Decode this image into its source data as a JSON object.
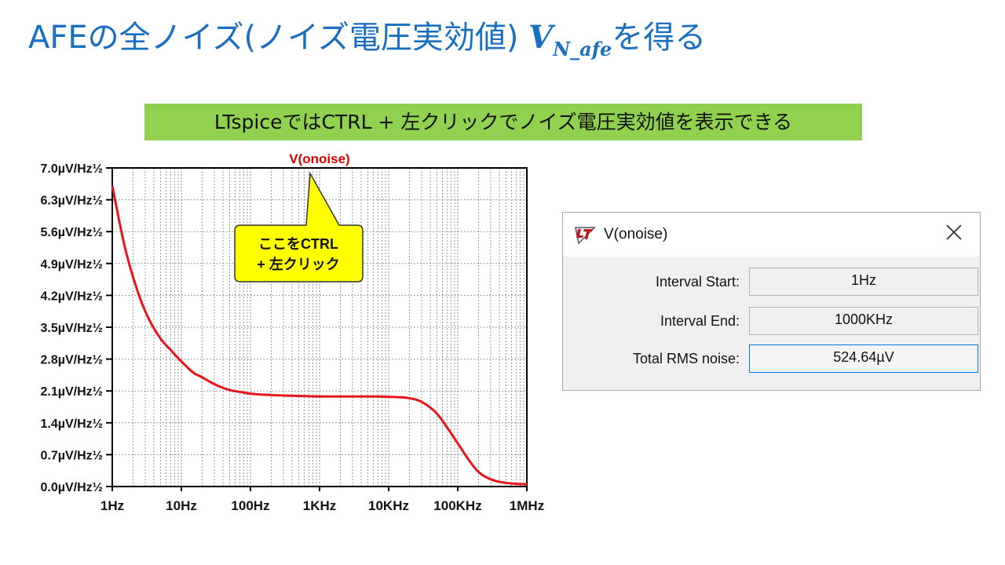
{
  "title": {
    "text": "AFEの全ノイズ(ノイズ電圧実効値) ",
    "symbol_main": "V",
    "symbol_sub": "N_afe",
    "suffix": "を得る"
  },
  "banner": {
    "text": "LTspiceではCTRL + 左クリックでノイズ電圧実効値を表示できる",
    "color": "#92d050"
  },
  "callout": {
    "line1": "ここをCTRL",
    "line2": "+ 左クリック",
    "color": "#ffff00"
  },
  "chart_data": {
    "type": "line",
    "title": "V(onoise)",
    "xscale": "log",
    "x_tick_labels": [
      "1Hz",
      "10Hz",
      "100Hz",
      "1KHz",
      "10KHz",
      "100KHz",
      "1MHz"
    ],
    "x_ticks": [
      1,
      10,
      100,
      1000,
      10000,
      100000,
      1000000
    ],
    "y_tick_labels": [
      "7.0µV/Hz½",
      "6.3µV/Hz½",
      "5.6µV/Hz½",
      "4.9µV/Hz½",
      "4.2µV/Hz½",
      "3.5µV/Hz½",
      "2.8µV/Hz½",
      "2.1µV/Hz½",
      "1.4µV/Hz½",
      "0.7µV/Hz½",
      "0.0µV/Hz½"
    ],
    "y_ticks": [
      7.0,
      6.3,
      5.6,
      4.9,
      4.2,
      3.5,
      2.8,
      2.1,
      1.4,
      0.7,
      0.0
    ],
    "xlim": [
      1,
      1000000
    ],
    "ylim": [
      0,
      7.0
    ],
    "grid": true,
    "series": [
      {
        "color": "#e8141c",
        "x": [
          1,
          1.5,
          2,
          3,
          5,
          7,
          10,
          15,
          20,
          30,
          50,
          70,
          100,
          200,
          500,
          1000,
          2000,
          5000,
          10000,
          20000,
          30000,
          50000,
          70000,
          100000,
          150000,
          200000,
          300000,
          500000,
          700000,
          1000000
        ],
        "y": [
          6.6,
          5.3,
          4.6,
          3.85,
          3.25,
          3.0,
          2.75,
          2.5,
          2.4,
          2.25,
          2.12,
          2.08,
          2.04,
          2.01,
          1.99,
          1.98,
          1.98,
          1.98,
          1.97,
          1.94,
          1.86,
          1.6,
          1.3,
          0.95,
          0.55,
          0.32,
          0.16,
          0.08,
          0.06,
          0.05
        ]
      }
    ]
  },
  "dialog": {
    "title": "V(onoise)",
    "rows": [
      {
        "label": "Interval Start:",
        "value": "1Hz"
      },
      {
        "label": "Interval End:",
        "value": "1000KHz"
      },
      {
        "label": "Total RMS noise:",
        "value": "524.64µV"
      }
    ]
  }
}
